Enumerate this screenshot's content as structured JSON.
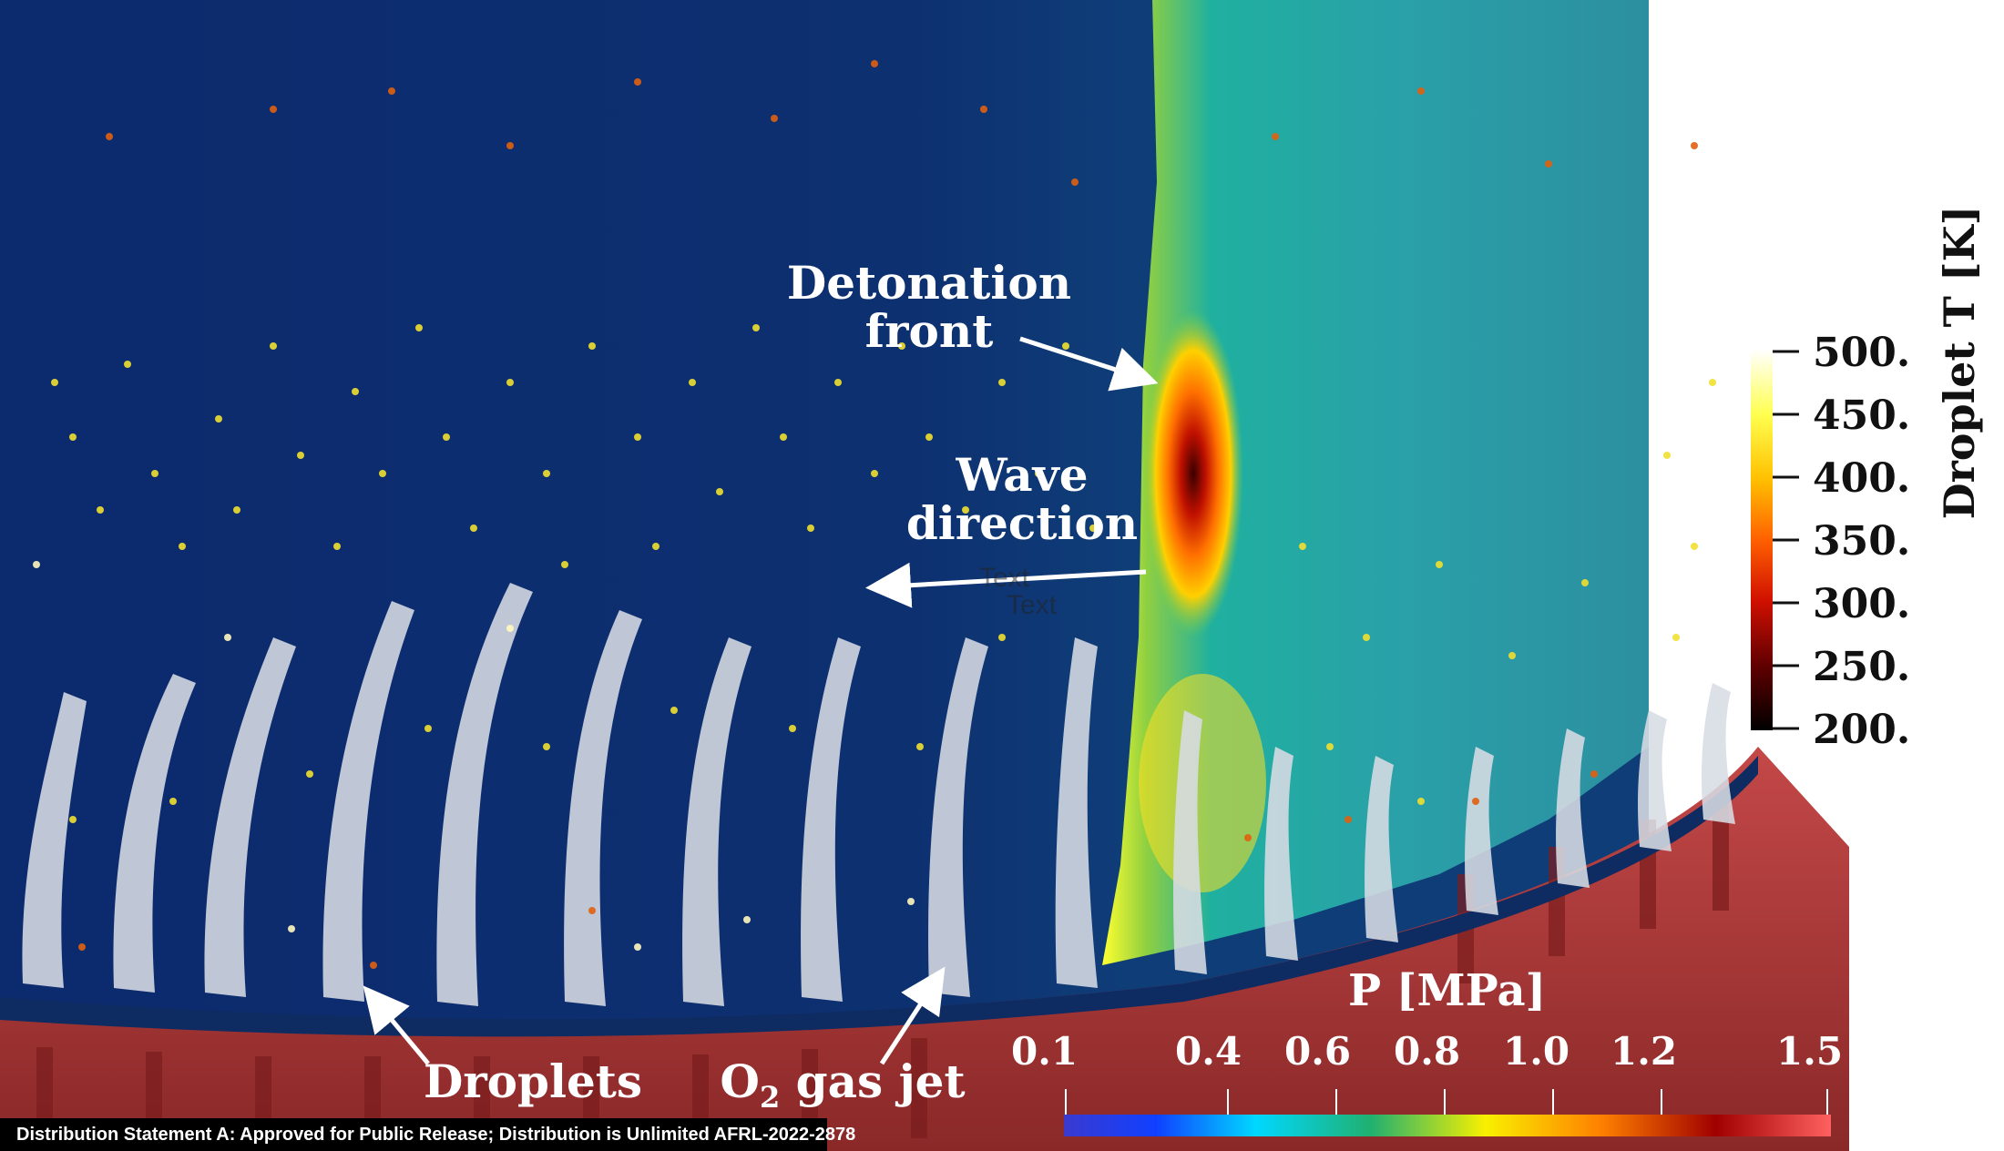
{
  "annotations": {
    "detonation_front": [
      "Detonation",
      "front"
    ],
    "wave_direction": [
      "Wave",
      "direction"
    ],
    "droplets": "Droplets",
    "o2_jet_main": "O",
    "o2_jet_sub": "2",
    "o2_jet_rest": " gas jet",
    "faint_text": [
      "Text",
      "Text"
    ]
  },
  "colorbar_temperature": {
    "title": "Droplet T [K]",
    "ticks": [
      "500.",
      "450.",
      "400.",
      "350.",
      "300.",
      "250.",
      "200."
    ],
    "colors": [
      "#ffffff",
      "#ffff40",
      "#ffc000",
      "#ff6000",
      "#d01000",
      "#600000",
      "#000000"
    ]
  },
  "colorbar_pressure": {
    "title": "P [MPa]",
    "ticks": [
      "0.1",
      "0.4",
      "0.6",
      "0.8",
      "1.0",
      "1.2",
      "1.5"
    ],
    "colors": [
      "#3030d0",
      "#0050ff",
      "#00e0ff",
      "#20c060",
      "#ffff00",
      "#ff8000",
      "#c00000",
      "#ff5a5a"
    ]
  },
  "distribution_statement": "Distribution Statement A: Approved for Public Release; Distribution is Unlimited AFRL-2022-2878",
  "colors": {
    "background_field": "#0c2a6e",
    "post_detonation": "#2aa8a0",
    "chamber": "#b84040",
    "jet": "#d8dce4"
  }
}
